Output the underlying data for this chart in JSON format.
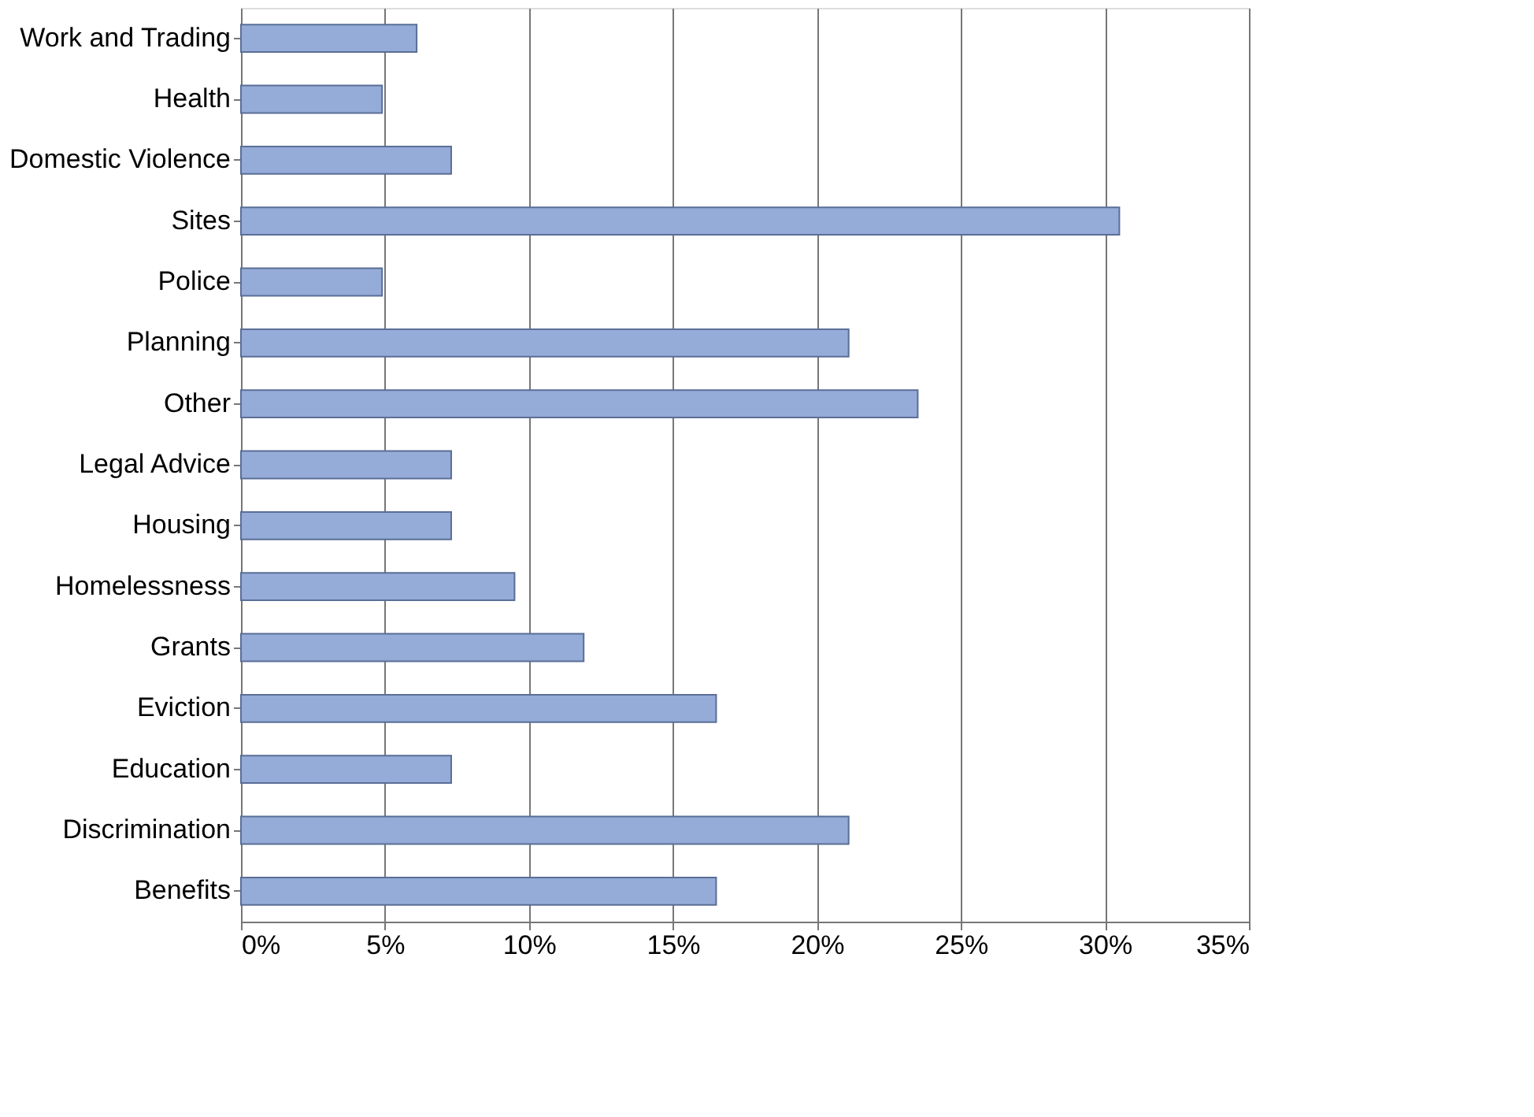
{
  "chart_data": {
    "type": "bar",
    "orientation": "horizontal",
    "categories": [
      "Work and Trading",
      "Health",
      "Domestic Violence",
      "Sites",
      "Police",
      "Planning",
      "Other",
      "Legal Advice",
      "Housing",
      "Homelessness",
      "Grants",
      "Eviction",
      "Education",
      "Discrimination",
      "Benefits"
    ],
    "values": [
      6.1,
      4.9,
      7.3,
      30.5,
      4.9,
      21.1,
      23.5,
      7.3,
      7.3,
      9.5,
      11.9,
      16.5,
      7.3,
      21.1,
      16.5
    ],
    "color": "#95abd8",
    "xlim": [
      0,
      35
    ],
    "xticks": [
      {
        "value": 0,
        "label": "0%"
      },
      {
        "value": 5,
        "label": "5%"
      },
      {
        "value": 10,
        "label": "10%"
      },
      {
        "value": 15,
        "label": "15%"
      },
      {
        "value": 20,
        "label": "20%"
      },
      {
        "value": 25,
        "label": "25%"
      },
      {
        "value": 30,
        "label": "30%"
      },
      {
        "value": 35,
        "label": "35%"
      }
    ],
    "grid": "x"
  }
}
